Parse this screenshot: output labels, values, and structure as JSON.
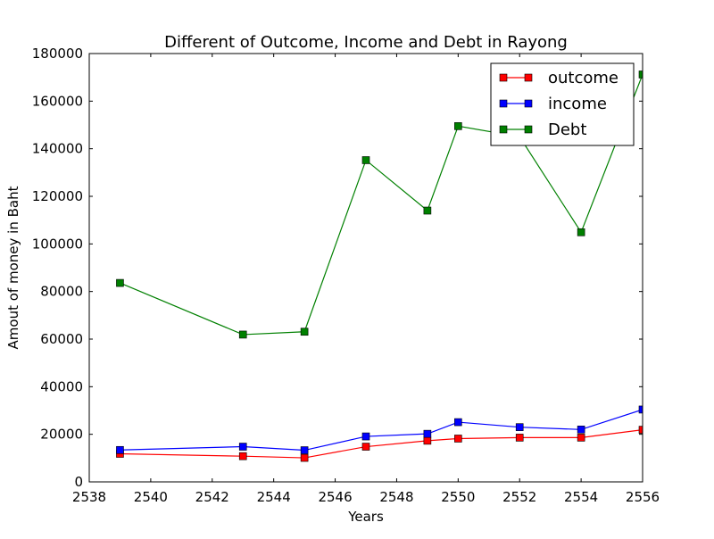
{
  "chart_data": {
    "type": "line",
    "title": "Different of Outcome, Income and Debt in Rayong",
    "xlabel": "Years",
    "ylabel": "Amout of money in Baht",
    "xlim": [
      2538,
      2556
    ],
    "ylim": [
      0,
      180000
    ],
    "x_ticks": [
      2538,
      2540,
      2542,
      2544,
      2546,
      2548,
      2550,
      2552,
      2554,
      2556
    ],
    "y_ticks": [
      0,
      20000,
      40000,
      60000,
      80000,
      100000,
      120000,
      140000,
      160000,
      180000
    ],
    "x": [
      2539,
      2543,
      2545,
      2547,
      2549,
      2550,
      2552,
      2554,
      2556
    ],
    "grid": false,
    "legend_position": "top-right",
    "series": [
      {
        "name": "outcome",
        "color": "#ff0000",
        "marker": "square",
        "values": [
          11800,
          10800,
          10100,
          14800,
          17300,
          18200,
          18600,
          18600,
          21900
        ]
      },
      {
        "name": "income",
        "color": "#0000ff",
        "marker": "square",
        "values": [
          13400,
          14800,
          13300,
          19100,
          20200,
          25100,
          23000,
          22000,
          30400
        ]
      },
      {
        "name": "Debt",
        "color": "#008000",
        "marker": "square",
        "values": [
          83600,
          61900,
          63100,
          135200,
          114000,
          149500,
          145000,
          104900,
          171200
        ]
      }
    ]
  }
}
